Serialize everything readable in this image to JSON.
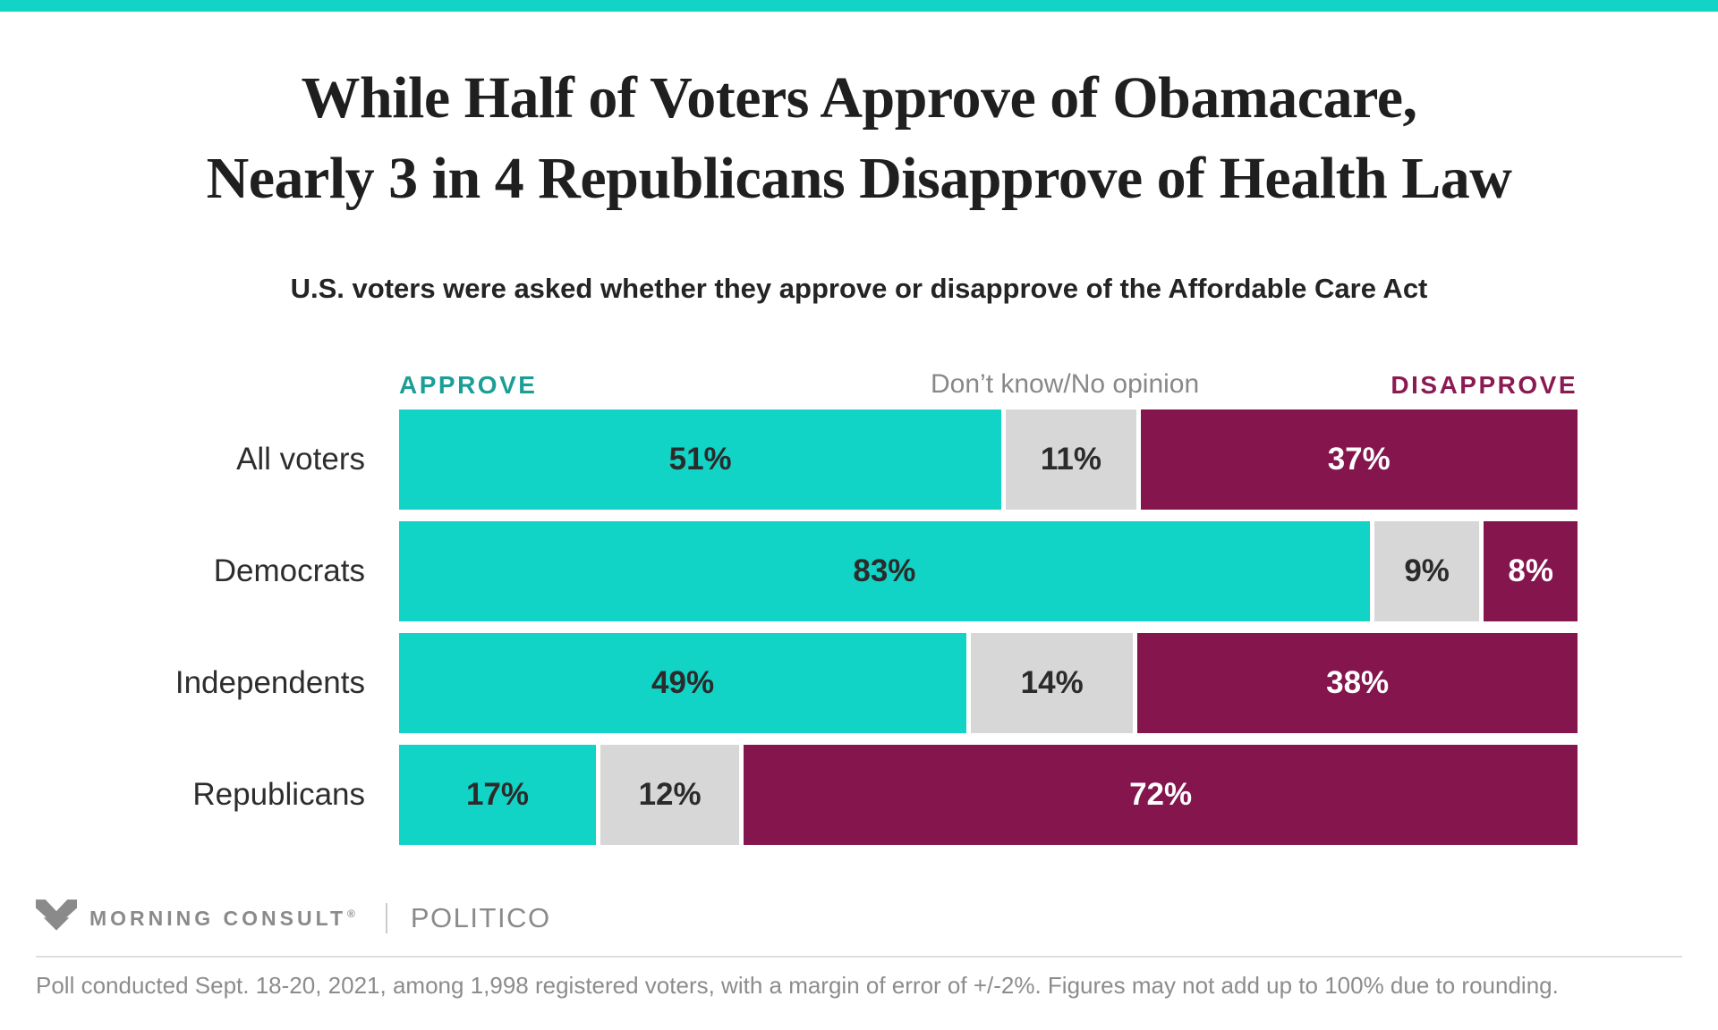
{
  "page": {
    "background": "#ffffff",
    "accent_band_color": "#11d3c6"
  },
  "title": {
    "line1": "While Half of Voters Approve of Obamacare,",
    "line2": "Nearly 3 in 4 Republicans Disapprove of Health Law"
  },
  "subtitle": "U.S. voters were asked whether they approve or disapprove of the Affordable Care Act",
  "legend": {
    "approve_label": "APPROVE",
    "neutral_label": "Don’t know/No opinion",
    "disapprove_label": "DISAPPROVE",
    "approve_color": "#1a9e96",
    "neutral_color": "#888888",
    "disapprove_color": "#8a1a52"
  },
  "chart_data": {
    "type": "bar",
    "orientation": "horizontal",
    "stacked": true,
    "value_suffix": "%",
    "categories": [
      "All voters",
      "Democrats",
      "Independents",
      "Republicans"
    ],
    "series": [
      {
        "name": "Approve",
        "color": "#11d3c6",
        "text_color": "#2b2b2b",
        "values": [
          51,
          83,
          49,
          17
        ]
      },
      {
        "name": "Don't know/No opinion",
        "color": "#d7d7d7",
        "text_color": "#2b2b2b",
        "values": [
          11,
          9,
          14,
          12
        ]
      },
      {
        "name": "Disapprove",
        "color": "#84154d",
        "text_color": "#ffffff",
        "values": [
          37,
          8,
          38,
          72
        ]
      }
    ],
    "note": "Figures may not add up to 100% due to rounding"
  },
  "footer": {
    "brand": "MORNING CONSULT",
    "reg_mark": "®",
    "partner": "POLITICO",
    "logo_color": "#8a8a8a",
    "note": "Poll conducted Sept. 18-20, 2021, among 1,998 registered voters, with a margin of error of +/-2%. Figures may not add up to 100% due to rounding."
  }
}
